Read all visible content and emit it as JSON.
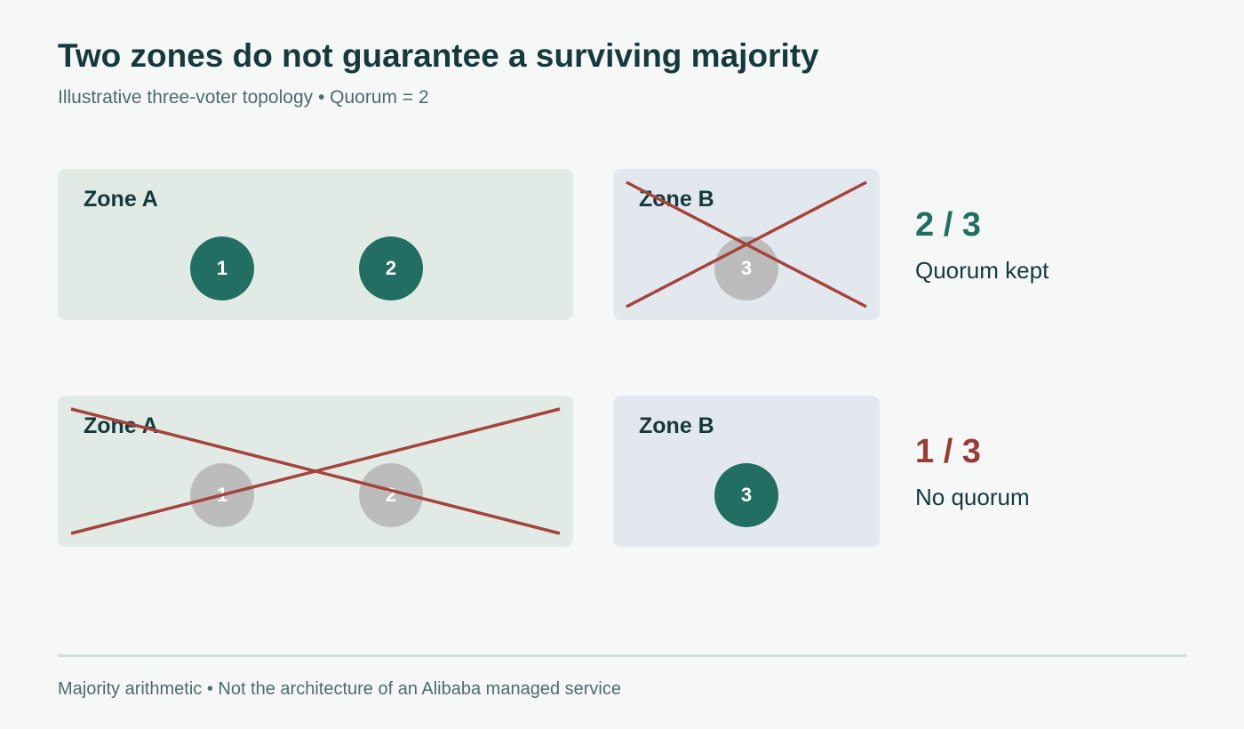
{
  "title": "Two zones do not guarantee a surviving majority",
  "subtitle": "Illustrative three-voter topology • Quorum = 2",
  "colors": {
    "alive_node": "#226e62",
    "failed_node": "#bcbcbc",
    "failure_cross": "#a4443c",
    "kept_accent": "#226e62",
    "lost_accent": "#9a3b35"
  },
  "scenarios": [
    {
      "zone_a": {
        "label": "Zone A",
        "failed": false,
        "nodes": [
          "1",
          "2"
        ]
      },
      "zone_b": {
        "label": "Zone B",
        "failed": true,
        "nodes": [
          "3"
        ]
      },
      "result": {
        "value": "2 / 3",
        "label": "Quorum kept"
      }
    },
    {
      "zone_a": {
        "label": "Zone A",
        "failed": true,
        "nodes": [
          "1",
          "2"
        ]
      },
      "zone_b": {
        "label": "Zone B",
        "failed": false,
        "nodes": [
          "3"
        ]
      },
      "result": {
        "value": "1 / 3",
        "label": "No quorum"
      }
    }
  ],
  "footer": "Majority arithmetic • Not the architecture of an Alibaba managed service"
}
